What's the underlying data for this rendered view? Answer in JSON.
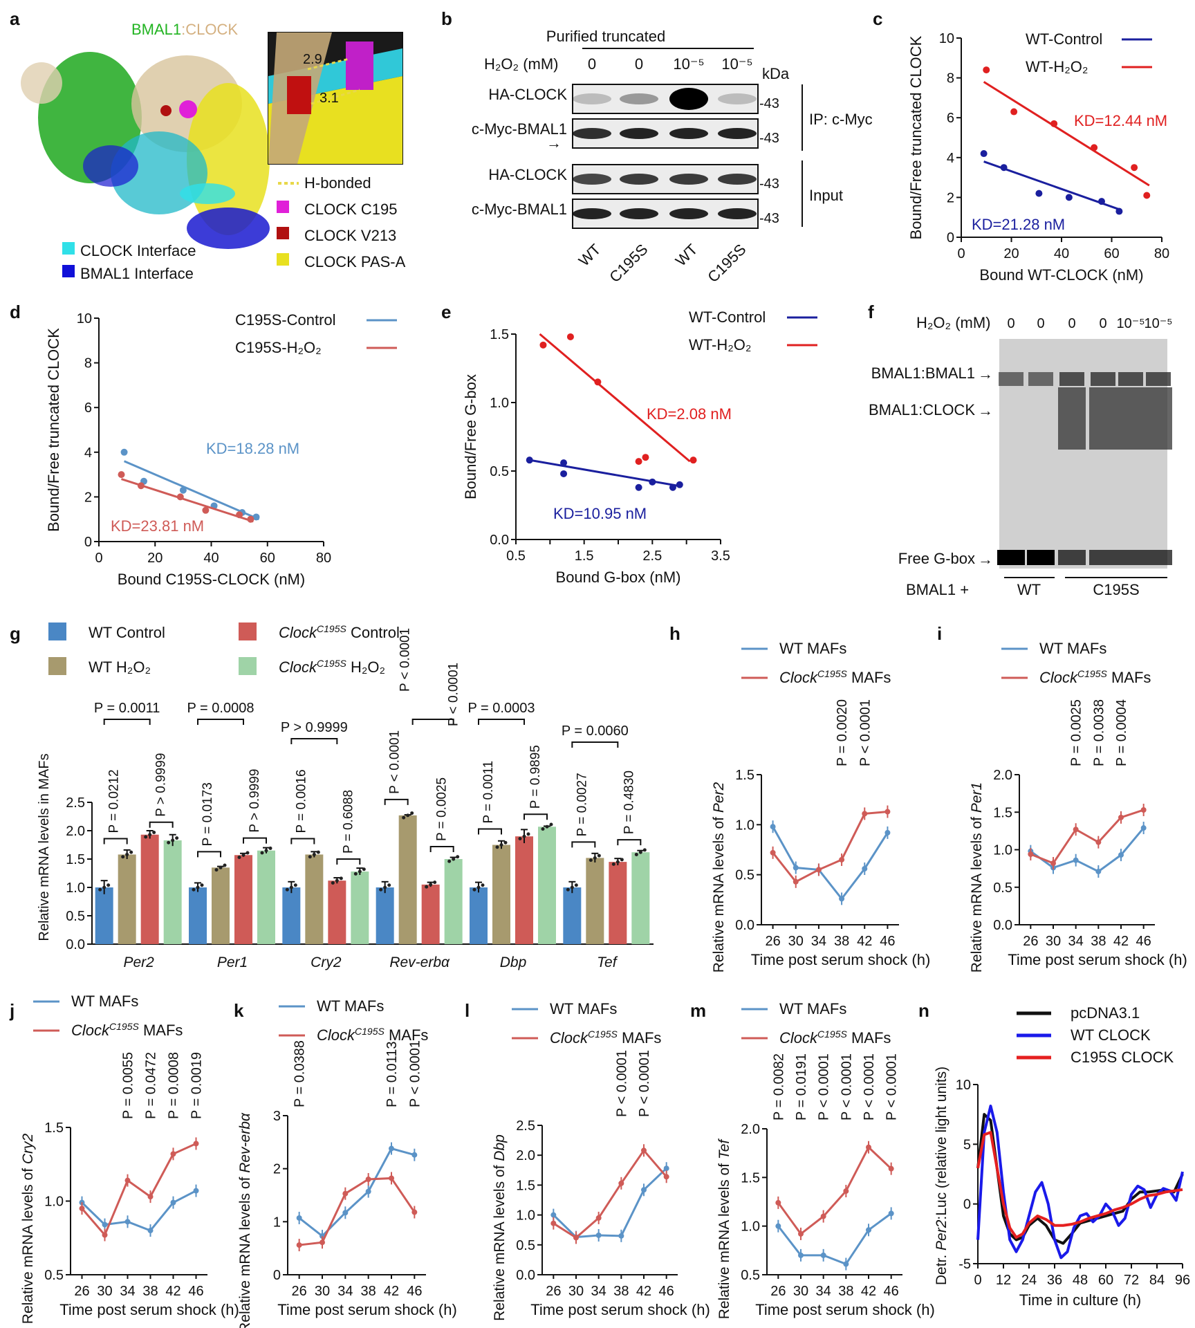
{
  "colors": {
    "navy": "#1a1f9e",
    "red": "#e02020",
    "lblue": "#5b93c7",
    "lred": "#cf5b57",
    "blueBar": "#4a87c5",
    "oliveBar": "#a79a6e",
    "redBar": "#cf5b57",
    "greenBar": "#9fd3a7",
    "black": "#111111",
    "nBlue": "#1a1aea",
    "nRed": "#e52020"
  },
  "letters": {
    "a": "a",
    "b": "b",
    "c": "c",
    "d": "d",
    "e": "e",
    "f": "f",
    "g": "g",
    "h": "h",
    "i": "i",
    "j": "j",
    "k": "k",
    "l": "l",
    "m": "m",
    "n": "n"
  },
  "panel_a": {
    "title_bmal": "BMAL1",
    "title_sep": ":",
    "title_clock": "CLOCK",
    "inset_labels": [
      "2.9",
      "3.1"
    ],
    "legend": [
      {
        "label": "H-bonded",
        "color": "#e8d84a",
        "kind": "dash"
      },
      {
        "label": "CLOCK C195",
        "color": "#e020d8",
        "kind": "box"
      },
      {
        "label": "CLOCK V213",
        "color": "#b01010",
        "kind": "box"
      },
      {
        "label": "CLOCK PAS-A",
        "color": "#e8e020",
        "kind": "box"
      }
    ],
    "legend_left": [
      {
        "label": "CLOCK Interface",
        "color": "#30e0e8"
      },
      {
        "label": "BMAL1 Interface",
        "color": "#1010d8"
      }
    ]
  },
  "panel_b": {
    "header": "Purified truncated",
    "h2o2_label": "H₂O₂ (mM)",
    "h2o2_values": [
      "0",
      "0",
      "10⁻⁵",
      "10⁻⁵"
    ],
    "kda": "kDa",
    "rows": [
      "HA-CLOCK",
      "c-Myc-BMAL1",
      "HA-CLOCK",
      "c-Myc-BMAL1"
    ],
    "markers": [
      "-43",
      "-43",
      "-43",
      "-43"
    ],
    "ip_label": "IP: c-Myc",
    "input_label": "Input",
    "lanes": [
      "WT",
      "C195S",
      "WT",
      "C195S"
    ]
  },
  "panel_f": {
    "h2o2_label": "H₂O₂ (mM)",
    "h2o2_values": [
      "0",
      "0",
      "0",
      "0",
      "10⁻⁵",
      "10⁻⁵"
    ],
    "bands": [
      "BMAL1:BMAL1",
      "BMAL1:CLOCK",
      "Free G-box"
    ],
    "bottom_label": "BMAL1 +",
    "groups": [
      "WT",
      "C195S"
    ]
  },
  "chart_data": [
    {
      "id": "c",
      "type": "scatter",
      "xlabel": "Bound WT-CLOCK (nM)",
      "ylabel": "Bound/Free truncated CLOCK",
      "xlim": [
        0,
        80
      ],
      "ylim": [
        0,
        10
      ],
      "xticks": [
        0,
        20,
        40,
        60,
        80
      ],
      "yticks": [
        0,
        2,
        4,
        6,
        8,
        10
      ],
      "series": [
        {
          "name": "WT-Control",
          "color": "navy",
          "x": [
            9,
            17,
            31,
            43,
            56,
            63
          ],
          "y": [
            4.2,
            3.5,
            2.2,
            2.0,
            1.8,
            1.3
          ],
          "fit": [
            [
              9,
              3.8
            ],
            [
              63,
              1.4
            ]
          ],
          "kd": "KD=21.28 nM"
        },
        {
          "name": "WT-H₂O₂",
          "color": "red",
          "x": [
            10,
            21,
            37,
            53,
            69,
            74
          ],
          "y": [
            8.4,
            6.3,
            5.7,
            4.5,
            3.5,
            2.1
          ],
          "fit": [
            [
              9,
              7.8
            ],
            [
              75,
              2.6
            ]
          ],
          "kd": "KD=12.44 nM"
        }
      ]
    },
    {
      "id": "d",
      "type": "scatter",
      "xlabel": "Bound C195S-CLOCK (nM)",
      "ylabel": "Bound/Free truncated CLOCK",
      "xlim": [
        0,
        80
      ],
      "ylim": [
        0,
        10
      ],
      "xticks": [
        0,
        20,
        40,
        60,
        80
      ],
      "yticks": [
        0,
        2,
        4,
        6,
        8,
        10
      ],
      "series": [
        {
          "name": "C195S-Control",
          "color": "lblue",
          "x": [
            9,
            16,
            30,
            41,
            51,
            56
          ],
          "y": [
            4.0,
            2.7,
            2.3,
            1.6,
            1.3,
            1.1
          ],
          "fit": [
            [
              9,
              3.6
            ],
            [
              57,
              1.0
            ]
          ],
          "kd": "KD=18.28 nM"
        },
        {
          "name": "C195S-H₂O₂",
          "color": "lred",
          "x": [
            8,
            15,
            29,
            38,
            50,
            54
          ],
          "y": [
            3.0,
            2.5,
            2.0,
            1.4,
            1.2,
            1.0
          ],
          "fit": [
            [
              8,
              2.8
            ],
            [
              55,
              0.9
            ]
          ],
          "kd": "KD=23.81 nM"
        }
      ]
    },
    {
      "id": "e",
      "type": "scatter",
      "xlabel": "Bound G-box (nM)",
      "ylabel": "Bound/Free G-box",
      "xlim": [
        0.5,
        3.5
      ],
      "ylim": [
        0,
        1.5
      ],
      "xticks": [
        0.5,
        1.0,
        1.5,
        2.0,
        2.5,
        3.0,
        3.5
      ],
      "xticklabels": [
        "0.5",
        "",
        "1.5",
        "",
        "2.5",
        "",
        "3.5"
      ],
      "yticks": [
        0,
        0.5,
        1.0,
        1.5
      ],
      "yticklabels": [
        "0.0",
        "0.5",
        "1.0",
        "1.5"
      ],
      "series": [
        {
          "name": "WT-Control",
          "color": "navy",
          "x": [
            0.7,
            1.2,
            1.2,
            2.3,
            2.5,
            2.8,
            2.9
          ],
          "y": [
            0.58,
            0.56,
            0.48,
            0.38,
            0.42,
            0.38,
            0.4
          ],
          "fit": [
            [
              0.7,
              0.58
            ],
            [
              2.9,
              0.39
            ]
          ],
          "kd": "KD=10.95 nM"
        },
        {
          "name": "WT-H₂O₂",
          "color": "red",
          "x": [
            0.9,
            1.3,
            1.7,
            2.3,
            2.4,
            3.1
          ],
          "y": [
            1.42,
            1.48,
            1.15,
            0.57,
            0.6,
            0.58
          ],
          "fit": [
            [
              0.85,
              1.5
            ],
            [
              3.05,
              0.57
            ]
          ],
          "kd": "KD=2.08 nM"
        }
      ]
    },
    {
      "id": "g",
      "type": "bar",
      "ylabel": "Relative mRNA levels in MAFs",
      "ylim": [
        0,
        2.5
      ],
      "yticks": [
        0,
        0.5,
        1.0,
        1.5,
        2.0,
        2.5
      ],
      "yticklabels": [
        "0.0",
        "0.5",
        "1.0",
        "1.5",
        "2.0",
        "2.5"
      ],
      "categories": [
        "Per2",
        "Per1",
        "Cry2",
        "Rev-erbα",
        "Dbp",
        "Tef"
      ],
      "series": [
        {
          "name": "WT Control",
          "color": "blueBar",
          "values": [
            1.0,
            1.0,
            1.0,
            1.0,
            1.0,
            1.0
          ]
        },
        {
          "name": "WT H₂O₂",
          "color": "oliveBar",
          "values": [
            1.58,
            1.35,
            1.58,
            2.27,
            1.75,
            1.52
          ]
        },
        {
          "name": "Clock C195S Control",
          "color": "redBar",
          "values": [
            1.93,
            1.57,
            1.12,
            1.05,
            1.9,
            1.45
          ]
        },
        {
          "name": "Clock C195S H₂O₂",
          "color": "greenBar",
          "values": [
            1.83,
            1.65,
            1.28,
            1.5,
            2.07,
            1.62
          ]
        }
      ],
      "errors": [
        [
          0.12,
          0.08,
          0.07,
          0.1
        ],
        [
          0.08,
          0.02,
          0.03,
          0.05
        ],
        [
          0.1,
          0.05,
          0.05,
          0.06
        ],
        [
          0.1,
          0.01,
          0.04,
          0.03
        ],
        [
          0.09,
          0.07,
          0.12,
          0.01
        ],
        [
          0.1,
          0.08,
          0.06,
          0.03
        ]
      ],
      "legend": [
        {
          "pre": "WT Control",
          "sup": "",
          "post": ""
        },
        {
          "pre": "WT H₂O₂",
          "sup": "",
          "post": ""
        },
        {
          "pre": "Clock",
          "sup": "C195S",
          "post": " Control"
        },
        {
          "pre": "Clock",
          "sup": "C195S",
          "post": " H₂O₂"
        }
      ],
      "pvals": {
        "top": [
          "P = 0.0011",
          "P = 0.0008",
          "P > 0.9999",
          "P < 0.0001",
          "P = 0.0003",
          "P = 0.0060"
        ],
        "left": [
          "P = 0.0212",
          "P = 0.0173",
          "P = 0.0016",
          "P < 0.0001",
          "P = 0.0011",
          "P = 0.0027"
        ],
        "right": [
          "P > 0.9999",
          "P > 0.9999",
          "P = 0.6088",
          "P = 0.0025",
          "P = 0.9895",
          "P = 0.4830"
        ],
        "revtop": "P < 0.0001"
      }
    },
    {
      "id": "h",
      "type": "line",
      "gene": "Per2",
      "xlabel": "Time post serum shock (h)",
      "ylim": [
        0,
        1.5
      ],
      "yticks": [
        0,
        0.5,
        1.0,
        1.5
      ],
      "yticklabels": [
        "0.0",
        "0.5",
        "1.0",
        "1.5"
      ],
      "x": [
        26,
        30,
        34,
        38,
        42,
        46
      ],
      "series": [
        {
          "name": "WT MAFs",
          "color": "lblue",
          "values": [
            0.98,
            0.57,
            0.55,
            0.26,
            0.56,
            0.92
          ]
        },
        {
          "name": "Clock C195S MAFs",
          "color": "lred",
          "values": [
            0.72,
            0.43,
            0.55,
            0.65,
            1.11,
            1.13
          ]
        }
      ],
      "pvals": [
        "",
        "",
        "",
        "P = 0.0020",
        "P < 0.0001",
        ""
      ]
    },
    {
      "id": "i",
      "type": "line",
      "gene": "Per1",
      "xlabel": "Time post serum shock (h)",
      "ylim": [
        0,
        2.0
      ],
      "yticks": [
        0,
        0.5,
        1.0,
        1.5,
        2.0
      ],
      "yticklabels": [
        "0.0",
        "0.5",
        "1.0",
        "1.5",
        "2.0"
      ],
      "x": [
        26,
        30,
        34,
        38,
        42,
        46
      ],
      "series": [
        {
          "name": "WT MAFs",
          "color": "lblue",
          "values": [
            0.98,
            0.76,
            0.86,
            0.71,
            0.93,
            1.29
          ]
        },
        {
          "name": "Clock C195S MAFs",
          "color": "lred",
          "values": [
            0.94,
            0.82,
            1.27,
            1.1,
            1.43,
            1.53
          ]
        }
      ],
      "pvals": [
        "",
        "",
        "P = 0.0025",
        "P = 0.0038",
        "P = 0.0004",
        ""
      ]
    },
    {
      "id": "j",
      "type": "line",
      "gene": "Cry2",
      "xlabel": "Time post serum shock (h)",
      "ylim": [
        0.5,
        1.5
      ],
      "yticks": [
        0.5,
        1.0,
        1.5
      ],
      "yticklabels": [
        "0.5",
        "1.0",
        "1.5"
      ],
      "x": [
        26,
        30,
        34,
        38,
        42,
        46
      ],
      "series": [
        {
          "name": "WT MAFs",
          "color": "lblue",
          "values": [
            0.99,
            0.84,
            0.86,
            0.8,
            0.99,
            1.07
          ]
        },
        {
          "name": "Clock C195S MAFs",
          "color": "lred",
          "values": [
            0.95,
            0.77,
            1.14,
            1.03,
            1.32,
            1.39
          ]
        }
      ],
      "pvals": [
        "",
        "",
        "P = 0.0055",
        "P = 0.0472",
        "P = 0.0008",
        "P = 0.0019"
      ]
    },
    {
      "id": "k",
      "type": "line",
      "gene": "Rev-erbα",
      "xlabel": "Time post serum shock (h)",
      "ylim": [
        0,
        3
      ],
      "yticks": [
        0,
        1,
        2,
        3
      ],
      "yticklabels": [
        "0",
        "1",
        "2",
        "3"
      ],
      "x": [
        26,
        30,
        34,
        38,
        42,
        46
      ],
      "series": [
        {
          "name": "WT MAFs",
          "color": "lblue",
          "values": [
            1.07,
            0.73,
            1.17,
            1.57,
            2.38,
            2.26
          ]
        },
        {
          "name": "Clock C195S MAFs",
          "color": "lred",
          "values": [
            0.56,
            0.61,
            1.53,
            1.8,
            1.82,
            1.18
          ]
        }
      ],
      "pvals": [
        "P = 0.0388",
        "",
        "",
        "",
        "P = 0.0113",
        "P < 0.0001"
      ]
    },
    {
      "id": "l",
      "type": "line",
      "gene": "Dbp",
      "xlabel": "Time post serum shock (h)",
      "ylim": [
        0,
        2.5
      ],
      "yticks": [
        0,
        0.5,
        1.0,
        1.5,
        2.0,
        2.5
      ],
      "yticklabels": [
        "0.0",
        "0.5",
        "1.0",
        "1.5",
        "2.0",
        "2.5"
      ],
      "x": [
        26,
        30,
        34,
        38,
        42,
        46
      ],
      "series": [
        {
          "name": "WT MAFs",
          "color": "lblue",
          "values": [
            1.0,
            0.63,
            0.66,
            0.65,
            1.42,
            1.78
          ]
        },
        {
          "name": "Clock C195S MAFs",
          "color": "lred",
          "values": [
            0.86,
            0.62,
            0.95,
            1.53,
            2.08,
            1.64
          ]
        }
      ],
      "pvals": [
        "",
        "",
        "",
        "P < 0.0001",
        "P < 0.0001",
        ""
      ]
    },
    {
      "id": "m",
      "type": "line",
      "gene": "Tef",
      "xlabel": "Time post serum shock (h)",
      "ylim": [
        0.5,
        2.0
      ],
      "yticks": [
        0.5,
        1.0,
        1.5,
        2.0
      ],
      "yticklabels": [
        "0.5",
        "1.0",
        "1.5",
        "2.0"
      ],
      "x": [
        26,
        30,
        34,
        38,
        42,
        46
      ],
      "series": [
        {
          "name": "WT MAFs",
          "color": "lblue",
          "values": [
            1.0,
            0.7,
            0.7,
            0.61,
            0.96,
            1.13
          ]
        },
        {
          "name": "Clock C195S MAFs",
          "color": "lred",
          "values": [
            1.24,
            0.92,
            1.1,
            1.36,
            1.81,
            1.59
          ]
        }
      ],
      "pvals": [
        "P = 0.0082",
        "P = 0.0191",
        "P < 0.0001",
        "P < 0.0001",
        "P < 0.0001",
        "P < 0.0001"
      ]
    },
    {
      "id": "n",
      "type": "line",
      "xlabel": "Time in culture (h)",
      "ylabel": "Detr. Per2:Luc (relative light units)",
      "xlim": [
        0,
        96
      ],
      "ylim": [
        -5,
        10
      ],
      "xticks": [
        0,
        12,
        24,
        36,
        48,
        60,
        72,
        84,
        96
      ],
      "yticks": [
        -5,
        0,
        5,
        10
      ],
      "series": [
        {
          "name": "pcDNA3.1",
          "color": "black",
          "x": [
            0,
            3,
            6,
            9,
            12,
            15,
            18,
            21,
            24,
            28,
            32,
            36,
            40,
            44,
            48,
            52,
            56,
            60,
            64,
            68,
            72,
            76,
            80,
            84,
            88,
            92,
            96
          ],
          "y": [
            3,
            7.5,
            7,
            3,
            -1,
            -2.5,
            -3,
            -2.8,
            -1.8,
            -1.2,
            -1.8,
            -3,
            -3.3,
            -2.5,
            -1.6,
            -1.4,
            -1.2,
            -1,
            -0.8,
            -0.6,
            0.4,
            1,
            1,
            1.1,
            1.2,
            1,
            2.5
          ]
        },
        {
          "name": "WT CLOCK",
          "color": "nBlue",
          "x": [
            0,
            3,
            6,
            9,
            12,
            15,
            18,
            21,
            24,
            27,
            30,
            33,
            36,
            39,
            42,
            45,
            48,
            51,
            54,
            57,
            60,
            63,
            66,
            69,
            72,
            75,
            78,
            81,
            84,
            87,
            90,
            93,
            96
          ],
          "y": [
            -3,
            6,
            8.2,
            6,
            1,
            -3,
            -4,
            -3,
            -1,
            1,
            1.8,
            0,
            -3,
            -4.5,
            -4,
            -2,
            -1,
            -0.8,
            -1.5,
            -1,
            0,
            -0.6,
            -1.8,
            -1.2,
            0.8,
            1.5,
            1.2,
            -0.3,
            0.8,
            1.3,
            1.1,
            0.3,
            2.7
          ]
        },
        {
          "name": "C195S CLOCK",
          "color": "nRed",
          "x": [
            0,
            3,
            6,
            9,
            12,
            15,
            18,
            21,
            24,
            28,
            32,
            36,
            40,
            44,
            48,
            52,
            56,
            60,
            64,
            68,
            72,
            76,
            80,
            84,
            88,
            92,
            96
          ],
          "y": [
            3,
            5.8,
            6,
            3,
            0,
            -2,
            -2.8,
            -2.5,
            -1.6,
            -1,
            -1.3,
            -1.8,
            -1.8,
            -1.7,
            -1.5,
            -1.2,
            -1,
            -0.8,
            -0.5,
            -0.3,
            0,
            0.4,
            0.7,
            0.8,
            1,
            1.1,
            1.2
          ]
        }
      ],
      "legend": [
        "pcDNA3.1",
        "WT CLOCK",
        "C195S CLOCK"
      ]
    }
  ]
}
